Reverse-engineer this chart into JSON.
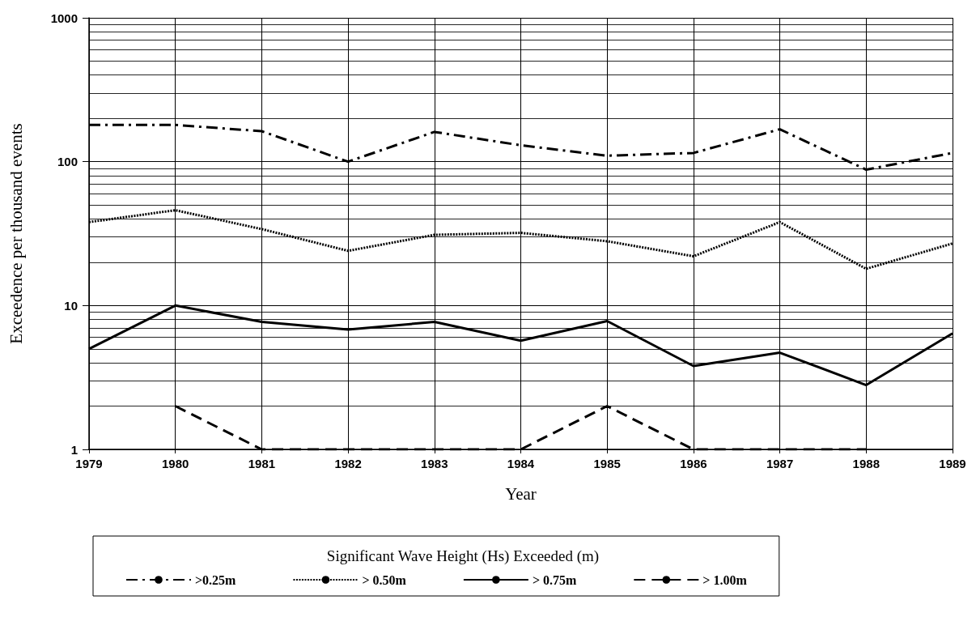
{
  "chart_data": {
    "type": "line",
    "xlabel": "Year",
    "ylabel": "Exceedence per thousand events",
    "legend_title": "Significant Wave Height (Hs) Exceeded (m)",
    "x": [
      1979,
      1980,
      1981,
      1982,
      1983,
      1984,
      1985,
      1986,
      1987,
      1988,
      1989
    ],
    "xlim": [
      1979,
      1989
    ],
    "xticks": [
      1979,
      1980,
      1981,
      1982,
      1983,
      1984,
      1985,
      1986,
      1987,
      1988,
      1989
    ],
    "ylim": [
      1,
      1000
    ],
    "yticks": [
      1,
      10,
      100,
      1000
    ],
    "log": "y",
    "grid": true,
    "legend": "bottom",
    "marker": "none",
    "series": [
      {
        "name": ">0.25m",
        "color": "#000000",
        "line_style": "dashdot",
        "values": [
          180,
          180,
          163,
          100,
          161,
          130,
          110,
          115,
          168,
          88,
          115
        ]
      },
      {
        "name": "> 0.50m",
        "color": "#000000",
        "line_style": "dotted",
        "values": [
          38,
          46,
          34,
          24,
          31,
          32,
          28,
          22,
          38,
          18,
          27
        ]
      },
      {
        "name": "> 0.75m",
        "color": "#000000",
        "line_style": "solid",
        "values": [
          5,
          10,
          7.7,
          6.8,
          7.7,
          5.7,
          7.8,
          3.8,
          4.7,
          2.8,
          6.4
        ]
      },
      {
        "name": "> 1.00m",
        "color": "#000000",
        "line_style": "dashed",
        "values": [
          null,
          2,
          1,
          1,
          1,
          1,
          2,
          1,
          1,
          1,
          null
        ]
      }
    ]
  }
}
